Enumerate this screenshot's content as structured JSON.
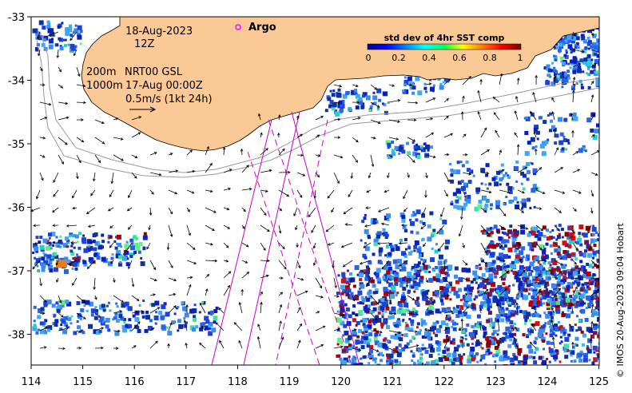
{
  "date_text": "18-Aug-2023",
  "hour_text": "12Z",
  "legend_argo": "Argo",
  "isobath_200": "200m",
  "isobath_1000": "1000m",
  "current_product": "NRT00 GSL",
  "current_time": "17-Aug 00:00Z",
  "vector_scale": "0.5m/s (1kt 24h)",
  "colorbar": {
    "title": "std dev of 4hr SST comp",
    "ticks": [
      "0",
      "0.2",
      "0.4",
      "0.6",
      "0.8",
      "1"
    ],
    "colormap": "jet"
  },
  "x_axis_labels": [
    "114",
    "115",
    "116",
    "117",
    "118",
    "119",
    "120",
    "121",
    "122",
    "123",
    "124",
    "125"
  ],
  "y_axis_labels": [
    "-33",
    "-34",
    "-35",
    "-36",
    "-37",
    "-38"
  ],
  "credit": "© IMOS 20-Aug-2023 09:04 Hobart",
  "colors": {
    "land": "#fbc995",
    "argo": "#ff00ff",
    "tracks": "#cc00cc",
    "isobath": "#999999"
  },
  "icons": [
    "argo-float-marker-icon",
    "current-vector-arrow-icon",
    "scale-arrow-icon"
  ]
}
